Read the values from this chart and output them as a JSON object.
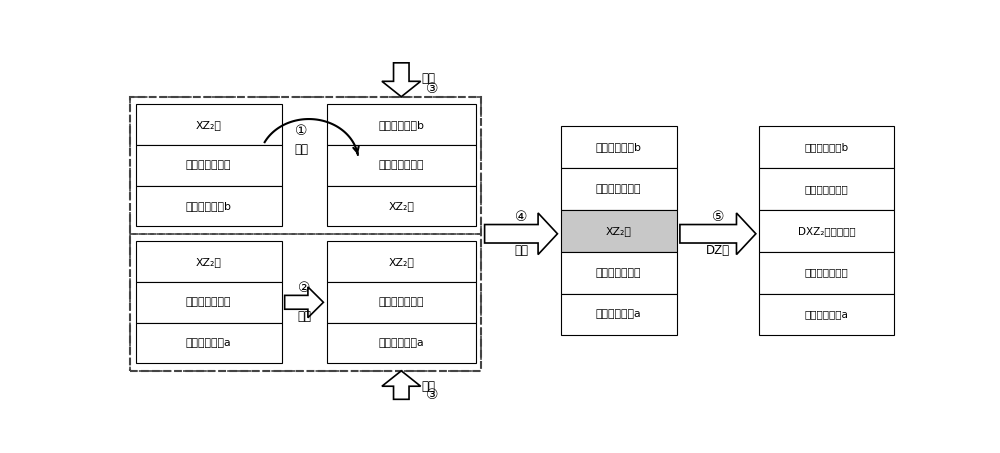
{
  "bg_color": "#ffffff",
  "gray_fill": "#c8c8c8",
  "left_top_layers": [
    "XZ₂层",
    "无机空穴传输层",
    "透明导电基板b"
  ],
  "left_bot_layers": [
    "XZ₂层",
    "无机电子传输层",
    "透明导电基板a"
  ],
  "right_top_layers": [
    "透明导电基板b",
    "无机空穴传输层",
    "XZ₂层"
  ],
  "right_bot_layers": [
    "XZ₂层",
    "无机电子传输层",
    "透明导电基板a"
  ],
  "mid_layers": [
    "透明导电基板b",
    "无机空穴传输层",
    "XZ₂层",
    "无机电子传输层",
    "透明导电基板a"
  ],
  "mid_gray_idx": 2,
  "final_layers": [
    "透明导电基板b",
    "无机空穴传输层",
    "DXZ₂型光捕获层",
    "无机电子传输层",
    "透明导电基板a"
  ],
  "step1_circle": "①",
  "step1_text": "翻转",
  "step2_circle": "②",
  "step2_text": "平移",
  "step3_circle": "③",
  "step3_text": "压力",
  "step4_circle": "④",
  "step4_text": "退火",
  "step5_circle": "⑤",
  "step5_text": "DZ浴"
}
